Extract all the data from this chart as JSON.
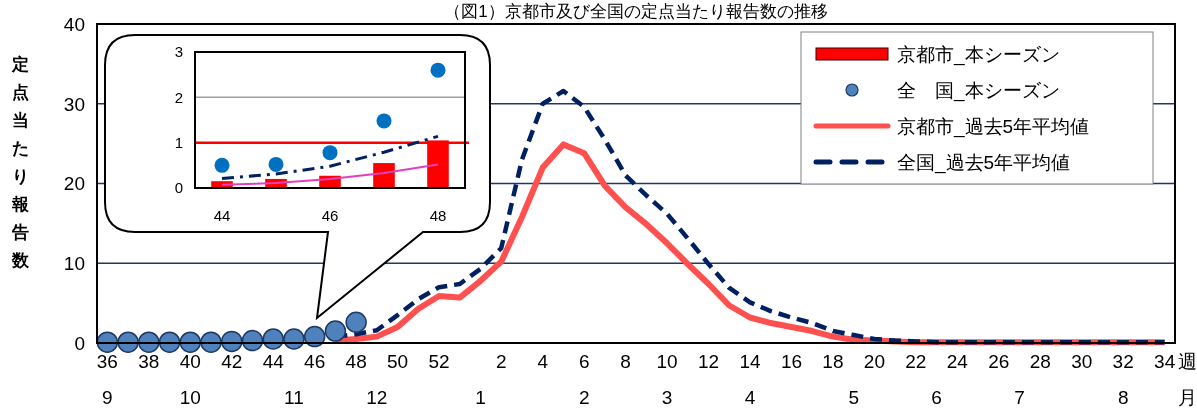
{
  "chart_data": [
    {
      "type": "line",
      "title": "（図1）京都市及び全国の定点当たり報告数の推移",
      "ylabel": "定点当たり報告数",
      "xlabel": "週月",
      "categories": [
        "36\n9",
        null,
        "38",
        null,
        "40\n10",
        null,
        "42",
        null,
        "44",
        "\n11",
        "46",
        null,
        "48",
        "\n12",
        "50",
        null,
        "52",
        null,
        "\n1",
        "2",
        null,
        "4",
        null,
        "6\n2",
        null,
        "8",
        null,
        "10\n3",
        null,
        "12",
        null,
        "14\n4",
        null,
        "16",
        null,
        "18",
        "\n5",
        "20",
        null,
        "22",
        "\n6",
        "24",
        null,
        "26",
        "\n7",
        "28",
        null,
        "30",
        null,
        "32\n8",
        null,
        "34"
      ],
      "ylim": [
        0,
        40
      ],
      "yticks": [
        0,
        10,
        20,
        30,
        40
      ],
      "grid": "y",
      "legend": "top right",
      "series": [
        {
          "name": "京都市_本シーズン",
          "type": "bar",
          "color": "#ff0000",
          "values": [
            null,
            null,
            null,
            null,
            null,
            null,
            null,
            null,
            null,
            null,
            null,
            null,
            null,
            null,
            null,
            null,
            null,
            null,
            null,
            null,
            null,
            null,
            null,
            null,
            null,
            null,
            null,
            null,
            null,
            null,
            null,
            null,
            null,
            null,
            null,
            null,
            null,
            null,
            null,
            null,
            null,
            null,
            null,
            null,
            null,
            null,
            null,
            null,
            null,
            null,
            null,
            null
          ]
        },
        {
          "name": "全　国_本シーズン",
          "type": "scatter",
          "marker": "circle",
          "color": "#4f81bd",
          "values": [
            0.1,
            0.1,
            0.1,
            0.1,
            0.1,
            0.1,
            0.2,
            0.3,
            0.5,
            0.5,
            0.8,
            1.5,
            2.6,
            null,
            null,
            null,
            null,
            null,
            null,
            null,
            null,
            null,
            null,
            null,
            null,
            null,
            null,
            null,
            null,
            null,
            null,
            null,
            null,
            null,
            null,
            null,
            null,
            null,
            null,
            null,
            null,
            null,
            null,
            null,
            null,
            null,
            null,
            null,
            null,
            null,
            null,
            null
          ]
        },
        {
          "name": "京都市_過去5年平均値",
          "line_style": "solid",
          "color": "#ff5050",
          "values": [
            null,
            null,
            null,
            null,
            null,
            null,
            null,
            null,
            null,
            null,
            null,
            0.3,
            0.5,
            0.8,
            2.0,
            4.3,
            5.9,
            5.7,
            7.8,
            10.2,
            15.8,
            22.0,
            24.9,
            23.8,
            19.7,
            17.0,
            14.9,
            12.5,
            9.9,
            7.4,
            4.7,
            3.2,
            2.5,
            2.0,
            1.5,
            0.8,
            0.4,
            0.3,
            0.2,
            0.1,
            0.1,
            0.1,
            0.1,
            0.1,
            0.1,
            0.1,
            0.1,
            0.1,
            0.1,
            0.1,
            0.1,
            0.1
          ]
        },
        {
          "name": "全国_過去5年平均値",
          "line_style": "dashed",
          "color": "#002060",
          "values": [
            null,
            null,
            null,
            null,
            null,
            null,
            null,
            null,
            null,
            null,
            null,
            0.8,
            1.1,
            1.6,
            3.5,
            5.5,
            7.0,
            7.4,
            9.3,
            11.9,
            23.0,
            30.0,
            31.6,
            29.6,
            25.5,
            21.0,
            18.5,
            16.2,
            13.1,
            9.9,
            6.9,
            5.1,
            4.0,
            3.2,
            2.5,
            1.5,
            1.0,
            0.5,
            0.3,
            0.2,
            0.1,
            0.1,
            0.1,
            0.1,
            0.1,
            0.1,
            0.1,
            0.1,
            0.1,
            0.1,
            0.1,
            0.1
          ]
        }
      ]
    },
    {
      "type": "bar",
      "categories": [
        "44",
        null,
        "46",
        null,
        "48"
      ],
      "ylim": [
        0,
        3
      ],
      "yticks": [
        0,
        1,
        2,
        3
      ],
      "ref_lines": [
        {
          "axis": "y",
          "value": 1,
          "color": "#ff0000"
        },
        {
          "axis": "y",
          "value": 2,
          "color": "#a0a0a0"
        }
      ],
      "series": [
        {
          "color": "#ff0000",
          "values": [
            0.15,
            0.2,
            0.27,
            0.55,
            1.05
          ]
        },
        {
          "type": "line",
          "line_style": "solid",
          "color": "#e040c0",
          "values": [
            0.07,
            0.11,
            0.2,
            0.33,
            0.52
          ]
        },
        {
          "type": "line",
          "line_style": "dashdot",
          "color": "#002060",
          "values": [
            0.21,
            0.31,
            0.48,
            0.79,
            1.14
          ]
        },
        {
          "type": "scatter",
          "marker": "circle",
          "color": "#0070c0",
          "values": [
            0.5,
            0.52,
            0.78,
            1.48,
            2.6
          ]
        }
      ]
    }
  ]
}
